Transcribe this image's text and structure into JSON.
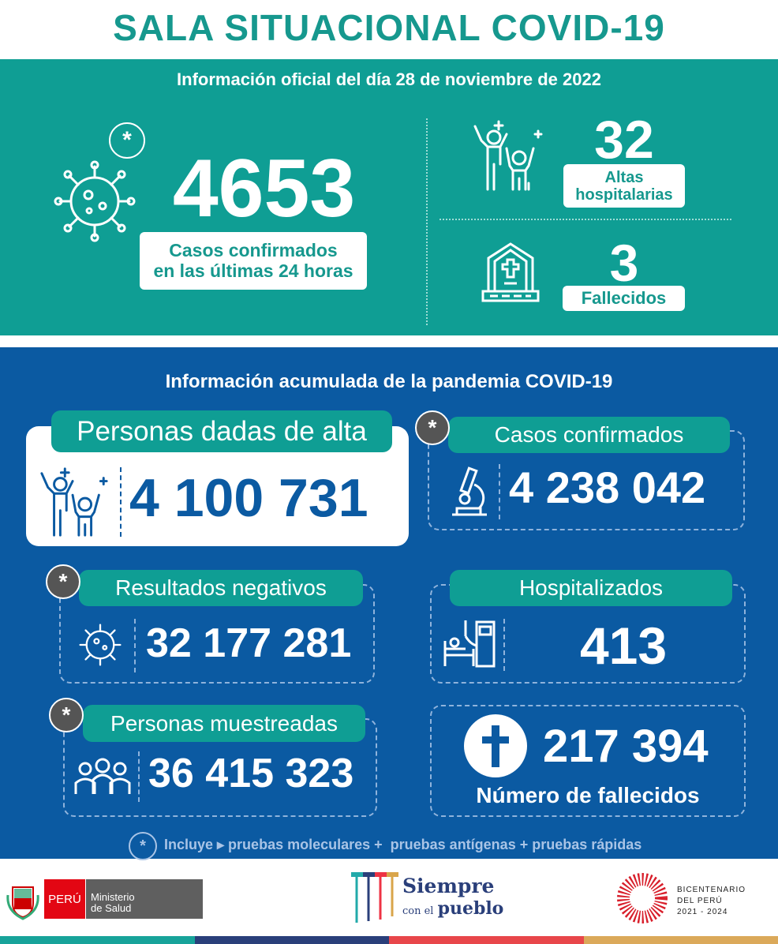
{
  "title": "SALA SITUACIONAL COVID-19",
  "daily": {
    "heading": "Información oficial del día 28 de noviembre de 2022",
    "cases": {
      "value": "4653",
      "label1": "Casos confirmados",
      "label2": "en las últimas 24 horas"
    },
    "discharges": {
      "value": "32",
      "label1": "Altas",
      "label2": "hospitalarias"
    },
    "deaths": {
      "value": "3",
      "label": "Fallecidos"
    }
  },
  "cumulative": {
    "heading": "Información acumulada de la pandemia COVID-19",
    "discharged": {
      "label": "Personas dadas de alta",
      "value": "4 100 731"
    },
    "confirmed": {
      "label": "Casos confirmados",
      "value": "4 238 042"
    },
    "negative": {
      "label": "Resultados negativos",
      "value": "32 177 281"
    },
    "hospitalized": {
      "label": "Hospitalizados",
      "value": "413"
    },
    "sampled": {
      "label": "Personas muestreadas",
      "value": "36 415 323"
    },
    "deaths": {
      "value": "217 394",
      "label": "Número de fallecidos"
    }
  },
  "asterisk": "*",
  "footnote": "Incluye ▸ pruebas moleculares +  pruebas antígenas + pruebas rápidas",
  "footer": {
    "peru": "PERÚ",
    "ministry1": "Ministerio",
    "ministry2": "de Salud",
    "slogan1": "Siempre",
    "slogan2a": "con el",
    "slogan2b": "pueblo",
    "bicent1": "BICENTENARIO",
    "bicent2": "DEL PERÚ",
    "bicent3": "2021 - 2024"
  },
  "colors": {
    "teal": "#0f9e94",
    "blue": "#0b5aa2",
    "red": "#e30613"
  }
}
